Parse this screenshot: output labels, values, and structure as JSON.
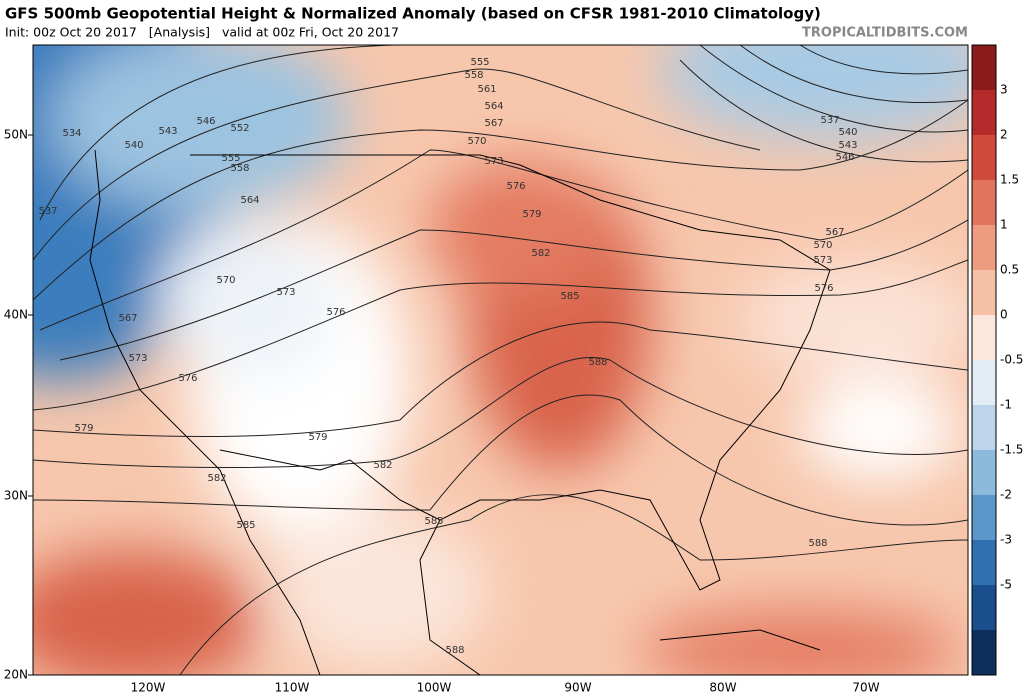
{
  "header": {
    "title": "GFS 500mb Geopotential Height & Normalized Anomaly (based on CFSR 1981-2010 Climatology)",
    "subtitle": "Init: 00z Oct 20 2017   [Analysis]   valid at 00z Fri, Oct 20 2017",
    "site": "TROPICALTIDBITS.COM"
  },
  "map": {
    "lat_labels": [
      "50N",
      "40N",
      "30N",
      "20N"
    ],
    "lon_labels": [
      "120W",
      "110W",
      "100W",
      "90W",
      "80W",
      "70W"
    ],
    "contour_labels": [
      555,
      558,
      561,
      564,
      567,
      570,
      573,
      576,
      579,
      582,
      585,
      588,
      588,
      588,
      585,
      582,
      579,
      579,
      582,
      585,
      576,
      573,
      567,
      573,
      576,
      570,
      564,
      558,
      555,
      552,
      546,
      543,
      540,
      534,
      537,
      537,
      540,
      543,
      546,
      567,
      570,
      573,
      576
    ]
  },
  "colorbar": {
    "labels": [
      "3",
      "2",
      "1.5",
      "1",
      "0.5",
      "0",
      "-0.5",
      "-1",
      "-1.5",
      "-2",
      "-3",
      "-5"
    ]
  }
}
